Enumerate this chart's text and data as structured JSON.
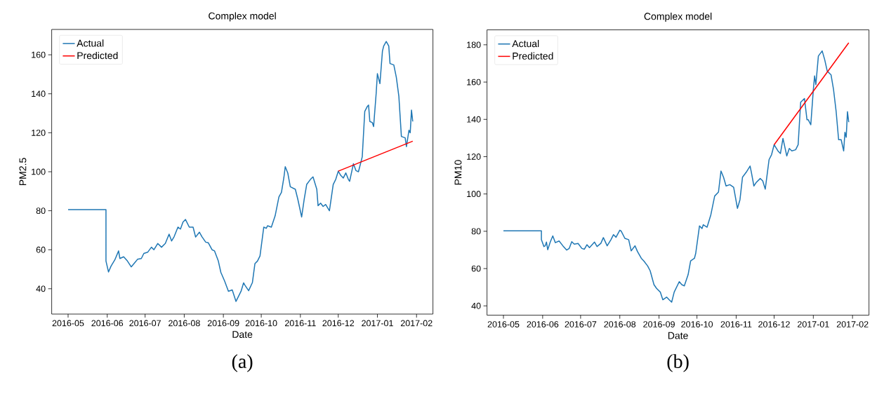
{
  "chart_data": [
    {
      "type": "line",
      "title": "Complex model",
      "xlabel": "Date",
      "ylabel": "PM2.5",
      "legend": "top left",
      "annotations": [
        "(a)"
      ],
      "xlim": [
        "2016-04-18",
        "2017-02-14"
      ],
      "ylim": [
        27,
        173
      ],
      "xticks": [
        {
          "value": "2016-05-01",
          "label": "2016-05"
        },
        {
          "value": "2016-06-01",
          "label": "2016-06"
        },
        {
          "value": "2016-07-01",
          "label": "2016-07"
        },
        {
          "value": "2016-08-01",
          "label": "2016-08"
        },
        {
          "value": "2016-09-01",
          "label": "2016-09"
        },
        {
          "value": "2016-10-01",
          "label": "2016-10"
        },
        {
          "value": "2016-11-01",
          "label": "2016-11"
        },
        {
          "value": "2016-12-01",
          "label": "2016-12"
        },
        {
          "value": "2017-01-01",
          "label": "2017-01"
        },
        {
          "value": "2017-02-01",
          "label": "2017-02"
        }
      ],
      "yticks": [
        40,
        60,
        80,
        100,
        120,
        140,
        160
      ],
      "series": [
        {
          "name": "Actual",
          "color": "#1f77b4",
          "x": [
            "2016-05-01",
            "2016-05-31",
            "2016-05-31",
            "2016-06-02",
            "2016-06-04",
            "2016-06-07",
            "2016-06-10",
            "2016-06-11",
            "2016-06-14",
            "2016-06-17",
            "2016-06-20",
            "2016-06-23",
            "2016-06-25",
            "2016-06-28",
            "2016-06-30",
            "2016-07-03",
            "2016-07-06",
            "2016-07-08",
            "2016-07-11",
            "2016-07-14",
            "2016-07-17",
            "2016-07-20",
            "2016-07-22",
            "2016-07-24",
            "2016-07-27",
            "2016-07-29",
            "2016-07-31",
            "2016-08-02",
            "2016-08-05",
            "2016-08-08",
            "2016-08-10",
            "2016-08-13",
            "2016-08-15",
            "2016-08-18",
            "2016-08-20",
            "2016-08-23",
            "2016-08-25",
            "2016-08-28",
            "2016-08-30",
            "2016-09-02",
            "2016-09-05",
            "2016-09-08",
            "2016-09-11",
            "2016-09-15",
            "2016-09-17",
            "2016-09-18",
            "2016-09-21",
            "2016-09-24",
            "2016-09-26",
            "2016-09-28",
            "2016-09-30",
            "2016-10-03",
            "2016-10-05",
            "2016-10-06",
            "2016-10-09",
            "2016-10-12",
            "2016-10-15",
            "2016-10-17",
            "2016-10-19",
            "2016-10-20",
            "2016-10-22",
            "2016-10-24",
            "2016-10-28",
            "2016-10-30",
            "2016-11-02",
            "2016-11-04",
            "2016-11-06",
            "2016-11-09",
            "2016-11-11",
            "2016-11-14",
            "2016-11-15",
            "2016-11-17",
            "2016-11-19",
            "2016-11-21",
            "2016-11-24",
            "2016-11-27",
            "2016-11-29",
            "2016-12-01",
            "2016-12-03",
            "2016-12-05",
            "2016-12-07",
            "2016-12-09",
            "2016-12-10",
            "2016-12-13",
            "2016-12-15",
            "2016-12-17",
            "2016-12-20",
            "2016-12-22",
            "2016-12-24",
            "2016-12-25",
            "2016-12-26",
            "2016-12-28",
            "2016-12-29",
            "2016-12-31",
            "2017-01-01",
            "2017-01-03",
            "2017-01-05",
            "2017-01-06",
            "2017-01-08",
            "2017-01-10",
            "2017-01-11",
            "2017-01-14",
            "2017-01-16",
            "2017-01-18",
            "2017-01-20",
            "2017-01-23",
            "2017-01-24",
            "2017-01-26",
            "2017-01-27",
            "2017-01-28",
            "2017-01-29"
          ],
          "values": [
            80.6,
            80.6,
            54.2,
            48.6,
            51.6,
            54.8,
            59.4,
            55.5,
            56.4,
            54.2,
            51.2,
            53.5,
            55.1,
            55.5,
            58.1,
            58.7,
            61.3,
            60.0,
            63.2,
            61.3,
            63.2,
            68.0,
            64.5,
            66.7,
            71.6,
            70.6,
            74.2,
            75.5,
            71.6,
            71.6,
            66.5,
            69.0,
            66.7,
            63.9,
            63.6,
            60.0,
            59.4,
            54.2,
            48.4,
            43.9,
            38.7,
            39.4,
            33.5,
            38.7,
            43.0,
            41.9,
            39.0,
            43.2,
            52.9,
            54.2,
            56.8,
            71.6,
            71.0,
            72.3,
            71.6,
            77.4,
            87.1,
            89.4,
            97.4,
            102.6,
            99.4,
            92.3,
            91.0,
            85.8,
            76.8,
            85.8,
            93.5,
            96.1,
            97.4,
            91.0,
            82.6,
            83.9,
            82.2,
            83.2,
            80.0,
            93.5,
            96.1,
            100.3,
            98.1,
            96.8,
            99.4,
            96.1,
            95.1,
            104.1,
            100.6,
            100.0,
            107.7,
            131.0,
            133.5,
            134.2,
            125.8,
            125.2,
            123.2,
            140.0,
            150.3,
            145.2,
            161.9,
            164.5,
            166.8,
            164.5,
            155.5,
            154.8,
            148.4,
            138.7,
            118.1,
            117.4,
            112.9,
            121.3,
            120.0,
            131.6,
            125.8
          ]
        },
        {
          "name": "Predicted",
          "color": "#ff0000",
          "x": [
            "2016-12-01",
            "2017-01-29"
          ],
          "values": [
            100.3,
            115.7
          ]
        }
      ]
    },
    {
      "type": "line",
      "title": "Complex model",
      "xlabel": "Date",
      "ylabel": "PM10",
      "legend": "top left",
      "annotations": [
        "(b)"
      ],
      "xlim": [
        "2016-04-18",
        "2017-02-14"
      ],
      "ylim": [
        35,
        188
      ],
      "xticks": [
        {
          "value": "2016-05-01",
          "label": "2016-05"
        },
        {
          "value": "2016-06-01",
          "label": "2016-06"
        },
        {
          "value": "2016-07-01",
          "label": "2016-07"
        },
        {
          "value": "2016-08-01",
          "label": "2016-08"
        },
        {
          "value": "2016-09-01",
          "label": "2016-09"
        },
        {
          "value": "2016-10-01",
          "label": "2016-10"
        },
        {
          "value": "2016-11-01",
          "label": "2016-11"
        },
        {
          "value": "2016-12-01",
          "label": "2016-12"
        },
        {
          "value": "2017-01-01",
          "label": "2017-01"
        },
        {
          "value": "2017-02-01",
          "label": "2017-02"
        }
      ],
      "yticks": [
        40,
        60,
        80,
        100,
        120,
        140,
        160,
        180
      ],
      "series": [
        {
          "name": "Actual",
          "color": "#1f77b4",
          "x": [
            "2016-05-01",
            "2016-05-31",
            "2016-05-31",
            "2016-06-02",
            "2016-06-03",
            "2016-06-04",
            "2016-06-05",
            "2016-06-07",
            "2016-06-09",
            "2016-06-11",
            "2016-06-14",
            "2016-06-17",
            "2016-06-20",
            "2016-06-22",
            "2016-06-24",
            "2016-06-26",
            "2016-06-29",
            "2016-07-02",
            "2016-07-04",
            "2016-07-06",
            "2016-07-08",
            "2016-07-12",
            "2016-07-14",
            "2016-07-17",
            "2016-07-19",
            "2016-07-22",
            "2016-07-25",
            "2016-07-27",
            "2016-07-29",
            "2016-08-01",
            "2016-08-02",
            "2016-08-05",
            "2016-08-08",
            "2016-08-10",
            "2016-08-13",
            "2016-08-15",
            "2016-08-18",
            "2016-08-20",
            "2016-08-23",
            "2016-08-25",
            "2016-08-28",
            "2016-08-30",
            "2016-09-02",
            "2016-09-04",
            "2016-09-07",
            "2016-09-09",
            "2016-09-11",
            "2016-09-13",
            "2016-09-17",
            "2016-09-19",
            "2016-09-21",
            "2016-09-24",
            "2016-09-26",
            "2016-09-29",
            "2016-09-30",
            "2016-10-03",
            "2016-10-05",
            "2016-10-06",
            "2016-10-09",
            "2016-10-12",
            "2016-10-15",
            "2016-10-18",
            "2016-10-20",
            "2016-10-22",
            "2016-10-24",
            "2016-10-27",
            "2016-10-30",
            "2016-11-02",
            "2016-11-04",
            "2016-11-06",
            "2016-11-09",
            "2016-11-12",
            "2016-11-13",
            "2016-11-15",
            "2016-11-17",
            "2016-11-20",
            "2016-11-22",
            "2016-11-24",
            "2016-11-27",
            "2016-11-29",
            "2016-12-01",
            "2016-12-04",
            "2016-12-06",
            "2016-12-08",
            "2016-12-11",
            "2016-12-13",
            "2016-12-15",
            "2016-12-18",
            "2016-12-20",
            "2016-12-22",
            "2016-12-25",
            "2016-12-27",
            "2016-12-28",
            "2016-12-30",
            "2017-01-01",
            "2017-01-02",
            "2017-01-03",
            "2017-01-05",
            "2017-01-08",
            "2017-01-10",
            "2017-01-12",
            "2017-01-15",
            "2017-01-17",
            "2017-01-19",
            "2017-01-21",
            "2017-01-23",
            "2017-01-25",
            "2017-01-26",
            "2017-01-27",
            "2017-01-28",
            "2017-01-29"
          ],
          "values": [
            80.2,
            80.2,
            75.5,
            71.8,
            72.2,
            74.2,
            70.1,
            74.2,
            77.5,
            73.9,
            74.8,
            72.2,
            69.9,
            70.8,
            74.4,
            73.1,
            73.5,
            70.8,
            70.4,
            72.8,
            71.2,
            74.2,
            71.8,
            73.5,
            76.6,
            72.2,
            75.5,
            78.2,
            76.8,
            80.6,
            80.2,
            76.2,
            75.5,
            69.5,
            72.2,
            69.1,
            65.5,
            64.1,
            61.4,
            58.8,
            51.4,
            49.4,
            47.4,
            43.3,
            44.7,
            43.3,
            42.0,
            47.4,
            53.0,
            51.4,
            50.7,
            56.7,
            64.1,
            65.5,
            68.1,
            82.9,
            81.5,
            83.5,
            82.2,
            88.9,
            98.9,
            101.0,
            112.3,
            109.0,
            104.3,
            105.0,
            103.6,
            92.3,
            96.9,
            109.0,
            111.7,
            115.0,
            111.7,
            104.3,
            106.3,
            108.3,
            107.0,
            102.6,
            118.4,
            121.1,
            126.4,
            123.1,
            121.7,
            129.8,
            120.4,
            124.4,
            123.1,
            123.7,
            126.4,
            149.2,
            151.2,
            139.8,
            139.8,
            137.1,
            155.9,
            163.3,
            158.6,
            174.0,
            176.7,
            172.0,
            165.9,
            163.9,
            155.9,
            144.5,
            129.1,
            129.1,
            123.1,
            133.1,
            130.4,
            144.1,
            138.5
          ]
        },
        {
          "name": "Predicted",
          "color": "#ff0000",
          "x": [
            "2016-12-01",
            "2017-01-29"
          ],
          "values": [
            126.4,
            181.1
          ]
        }
      ]
    }
  ]
}
